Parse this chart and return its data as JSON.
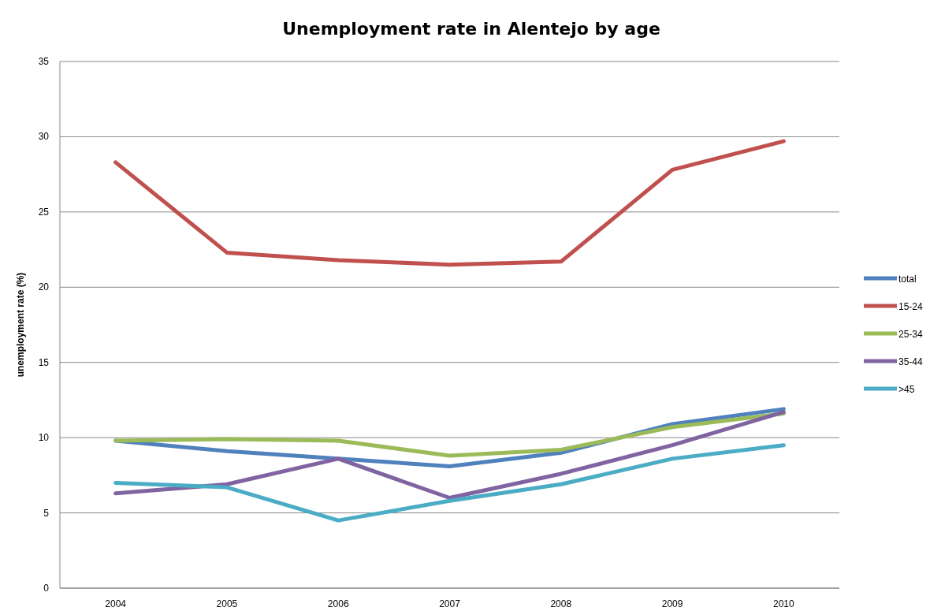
{
  "chart_data": {
    "type": "line",
    "title": "Unemployment rate in Alentejo by age",
    "ylabel": "unemployment rate (%)",
    "categories": [
      "2004",
      "2005",
      "2006",
      "2007",
      "2008",
      "2009",
      "2010"
    ],
    "series": [
      {
        "name": "total",
        "color": "#4f81bd",
        "values": [
          9.8,
          9.1,
          8.6,
          8.1,
          9.0,
          10.9,
          11.9
        ]
      },
      {
        "name": "15-24",
        "color": "#c0504d",
        "values": [
          28.3,
          22.3,
          21.8,
          21.5,
          21.7,
          27.8,
          29.7
        ]
      },
      {
        "name": "25-34",
        "color": "#9bbb59",
        "values": [
          9.8,
          9.9,
          9.8,
          8.8,
          9.2,
          10.7,
          11.6
        ]
      },
      {
        "name": "35-44",
        "color": "#8064a2",
        "values": [
          6.3,
          6.9,
          8.6,
          6.0,
          7.6,
          9.5,
          11.7
        ]
      },
      {
        "name": ">45",
        "color": "#4bacc6",
        "values": [
          7.0,
          6.7,
          4.5,
          5.8,
          6.9,
          8.6,
          9.5
        ]
      }
    ],
    "ylim": [
      0,
      35
    ],
    "yticks": [
      0,
      5,
      10,
      15,
      20,
      25,
      30,
      35
    ],
    "grid": "y",
    "legend": "right",
    "marker": "none",
    "line_style": "solid"
  }
}
